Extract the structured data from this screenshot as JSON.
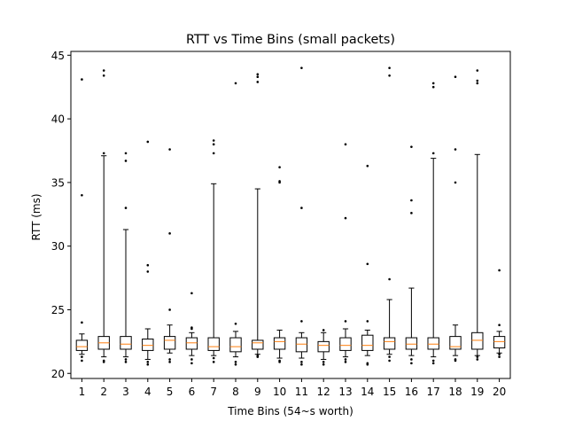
{
  "chart_data": {
    "type": "box",
    "title": "RTT vs Time Bins (small packets)",
    "xlabel": "Time Bins (54~s worth)",
    "ylabel": "RTT (ms)",
    "ylim": [
      19.6,
      45.3
    ],
    "yticks": [
      20,
      25,
      30,
      35,
      40,
      45
    ],
    "categories": [
      "1",
      "2",
      "3",
      "4",
      "5",
      "6",
      "7",
      "8",
      "9",
      "10",
      "11",
      "12",
      "13",
      "14",
      "15",
      "16",
      "17",
      "18",
      "19",
      "20"
    ],
    "colors": {
      "box": "#000000",
      "median": "#ff7f0e",
      "flier": "#000000"
    },
    "boxes": [
      {
        "q1": 21.8,
        "median": 22.1,
        "q3": 22.6,
        "whisker_low": 21.5,
        "whisker_high": 23.1,
        "fliers": [
          21.0,
          21.3,
          24.0,
          34.0,
          43.1
        ]
      },
      {
        "q1": 21.9,
        "median": 22.4,
        "q3": 22.9,
        "whisker_low": 21.3,
        "whisker_high": 37.1,
        "fliers": [
          20.9,
          21.0,
          37.3,
          43.4,
          43.8
        ]
      },
      {
        "q1": 21.9,
        "median": 22.3,
        "q3": 22.9,
        "whisker_low": 21.3,
        "whisker_high": 31.3,
        "fliers": [
          20.9,
          21.1,
          33.0,
          36.7,
          37.3
        ]
      },
      {
        "q1": 21.8,
        "median": 22.2,
        "q3": 22.7,
        "whisker_low": 21.1,
        "whisker_high": 23.5,
        "fliers": [
          20.7,
          20.9,
          28.0,
          28.5,
          38.2
        ]
      },
      {
        "q1": 21.9,
        "median": 22.6,
        "q3": 22.9,
        "whisker_low": 21.6,
        "whisker_high": 23.8,
        "fliers": [
          20.9,
          21.1,
          25.0,
          31.0,
          37.6
        ]
      },
      {
        "q1": 21.9,
        "median": 22.4,
        "q3": 22.8,
        "whisker_low": 21.4,
        "whisker_high": 23.2,
        "fliers": [
          20.8,
          21.1,
          23.5,
          23.6,
          26.3
        ]
      },
      {
        "q1": 21.8,
        "median": 22.1,
        "q3": 22.8,
        "whisker_low": 21.4,
        "whisker_high": 34.9,
        "fliers": [
          20.9,
          21.2,
          37.3,
          38.0,
          38.3
        ]
      },
      {
        "q1": 21.7,
        "median": 22.1,
        "q3": 22.8,
        "whisker_low": 21.3,
        "whisker_high": 23.3,
        "fliers": [
          20.7,
          20.9,
          23.9,
          42.8
        ]
      },
      {
        "q1": 21.9,
        "median": 22.4,
        "q3": 22.6,
        "whisker_low": 21.5,
        "whisker_high": 34.5,
        "fliers": [
          21.3,
          21.4,
          42.9,
          43.3,
          43.5
        ]
      },
      {
        "q1": 21.9,
        "median": 22.5,
        "q3": 22.8,
        "whisker_low": 21.2,
        "whisker_high": 23.4,
        "fliers": [
          20.9,
          21.0,
          35.0,
          35.1,
          36.2
        ]
      },
      {
        "q1": 21.7,
        "median": 22.3,
        "q3": 22.8,
        "whisker_low": 21.2,
        "whisker_high": 23.2,
        "fliers": [
          20.7,
          20.9,
          24.1,
          33.0,
          44.0
        ]
      },
      {
        "q1": 21.7,
        "median": 22.2,
        "q3": 22.5,
        "whisker_low": 21.1,
        "whisker_high": 23.2,
        "fliers": [
          20.7,
          20.9,
          23.4
        ]
      },
      {
        "q1": 21.8,
        "median": 22.2,
        "q3": 22.8,
        "whisker_low": 21.3,
        "whisker_high": 23.5,
        "fliers": [
          20.9,
          21.1,
          24.1,
          32.2,
          38.0
        ]
      },
      {
        "q1": 21.8,
        "median": 22.2,
        "q3": 23.0,
        "whisker_low": 21.4,
        "whisker_high": 23.4,
        "fliers": [
          20.8,
          20.7,
          24.1,
          28.6,
          36.3
        ]
      },
      {
        "q1": 21.9,
        "median": 22.5,
        "q3": 22.8,
        "whisker_low": 21.5,
        "whisker_high": 25.8,
        "fliers": [
          21.0,
          21.3,
          27.4,
          43.4,
          44.0
        ]
      },
      {
        "q1": 21.9,
        "median": 22.3,
        "q3": 22.8,
        "whisker_low": 21.4,
        "whisker_high": 26.7,
        "fliers": [
          20.8,
          21.1,
          32.6,
          33.6,
          37.8
        ]
      },
      {
        "q1": 21.9,
        "median": 22.3,
        "q3": 22.8,
        "whisker_low": 21.3,
        "whisker_high": 36.9,
        "fliers": [
          20.8,
          21.0,
          37.3,
          42.5,
          42.8
        ]
      },
      {
        "q1": 21.9,
        "median": 22.1,
        "q3": 22.9,
        "whisker_low": 21.4,
        "whisker_high": 23.8,
        "fliers": [
          21.0,
          21.1,
          35.0,
          37.6,
          43.3
        ]
      },
      {
        "q1": 21.9,
        "median": 22.6,
        "q3": 23.2,
        "whisker_low": 21.4,
        "whisker_high": 37.2,
        "fliers": [
          21.1,
          21.3,
          42.8,
          43.0,
          43.8
        ]
      },
      {
        "q1": 22.0,
        "median": 22.5,
        "q3": 22.9,
        "whisker_low": 21.6,
        "whisker_high": 23.3,
        "fliers": [
          21.3,
          21.5,
          23.8,
          28.1
        ]
      }
    ]
  }
}
